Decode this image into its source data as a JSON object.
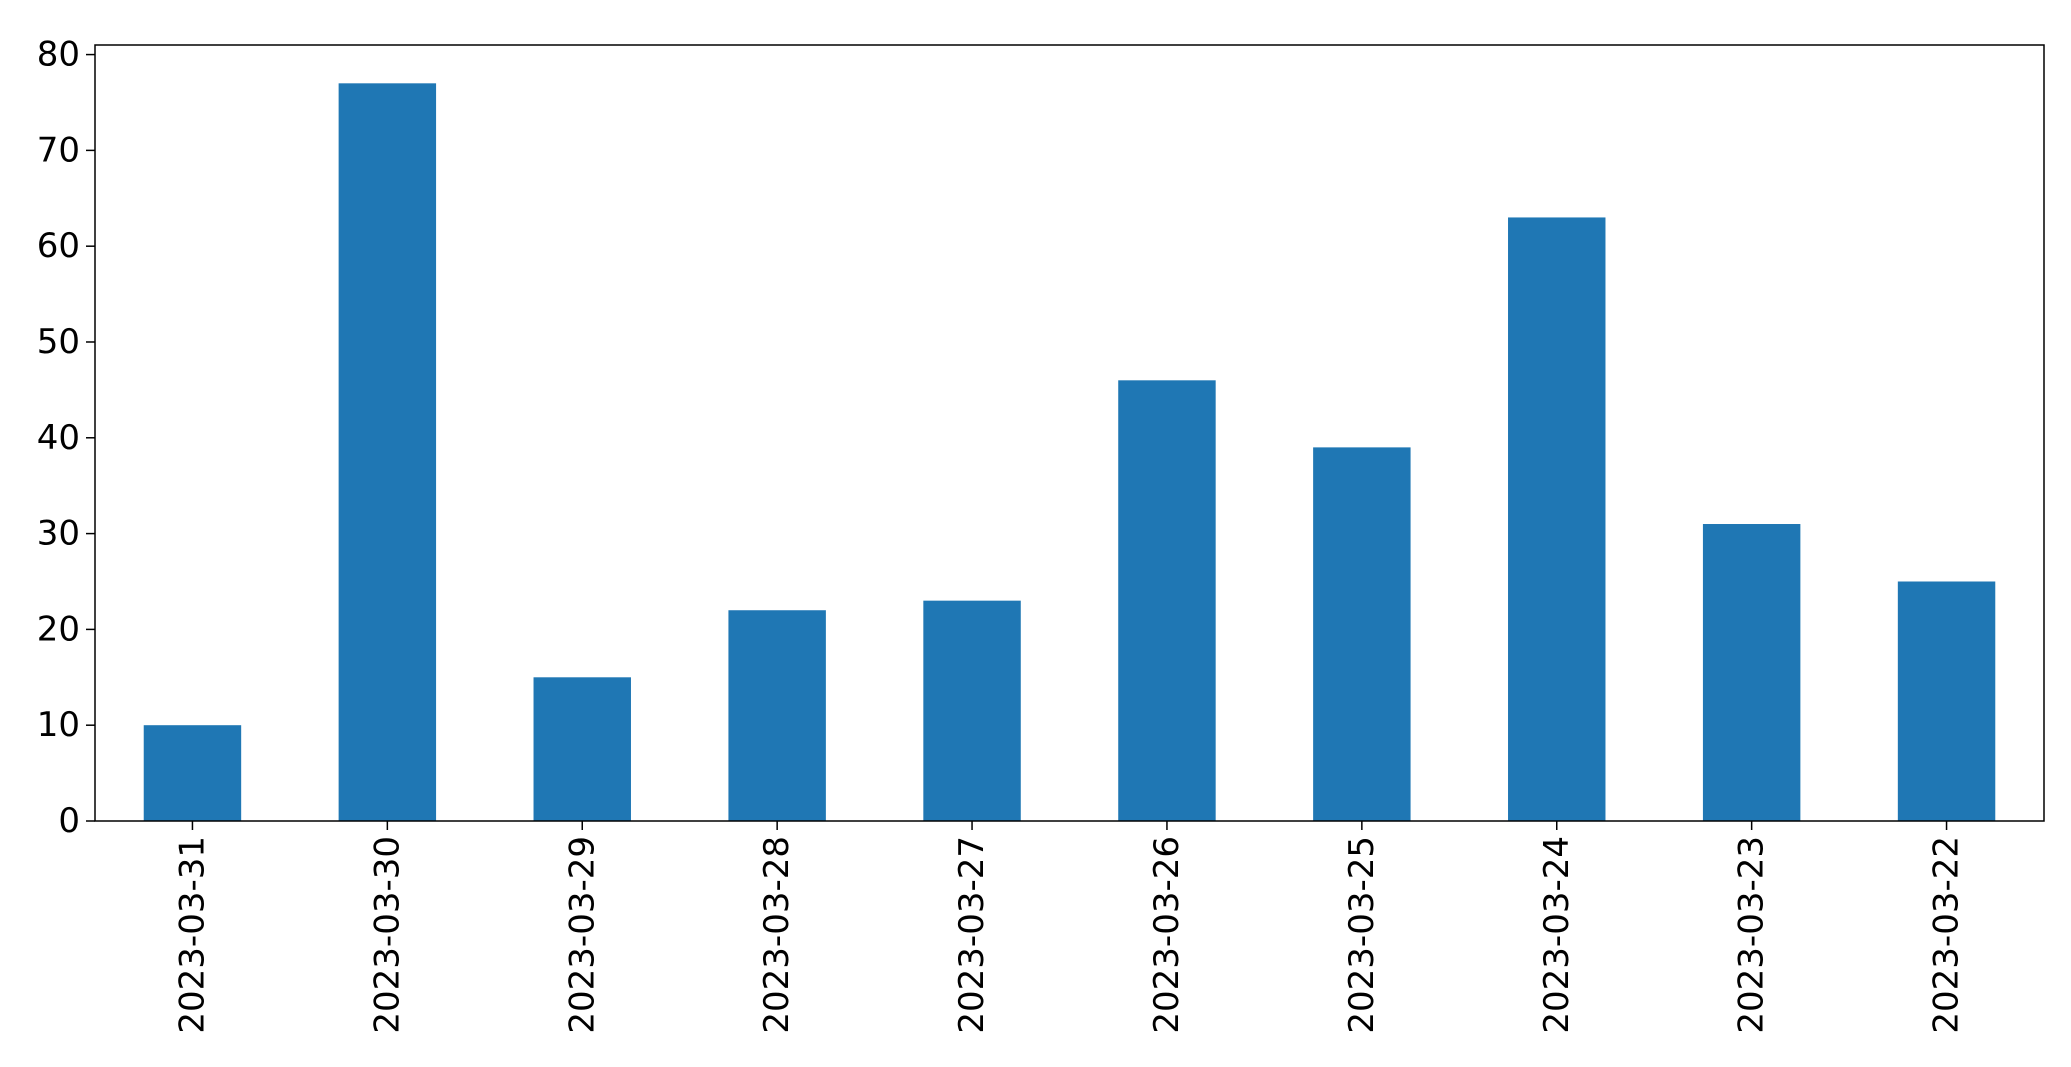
{
  "chart_data": {
    "type": "bar",
    "categories": [
      "2023-03-31",
      "2023-03-30",
      "2023-03-29",
      "2023-03-28",
      "2023-03-27",
      "2023-03-26",
      "2023-03-25",
      "2023-03-24",
      "2023-03-23",
      "2023-03-22"
    ],
    "values": [
      10,
      77,
      15,
      22,
      23,
      46,
      39,
      63,
      31,
      25
    ],
    "title": "",
    "xlabel": "",
    "ylabel": "",
    "ylim": [
      0,
      81
    ],
    "yticks": [
      0,
      10,
      20,
      30,
      40,
      50,
      60,
      70,
      80
    ],
    "grid": false,
    "legend": "none",
    "bar_color": "#1f77b4",
    "x_tick_rotation": "vertical"
  }
}
